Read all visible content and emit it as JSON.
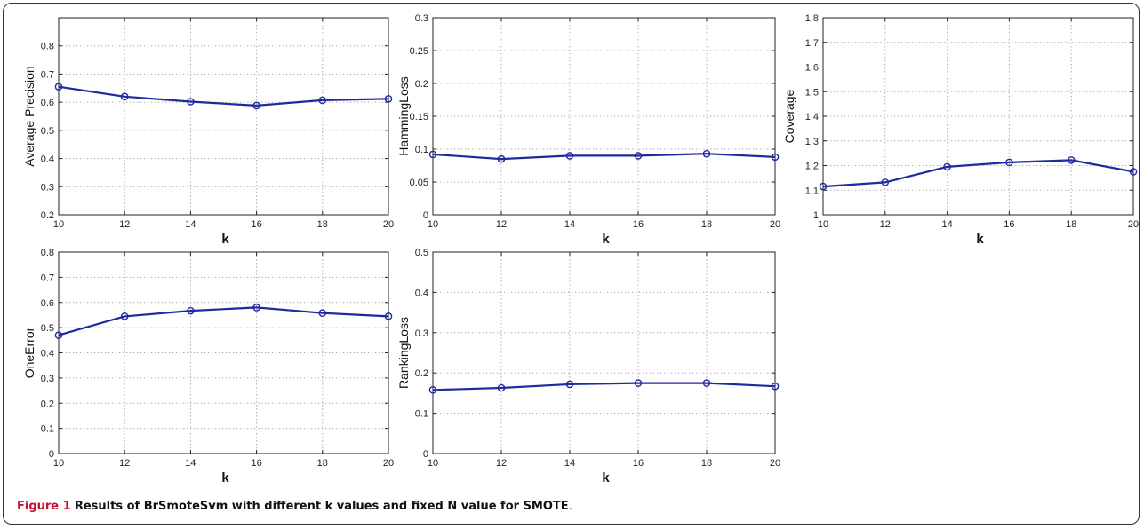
{
  "caption": {
    "label": "Figure 1",
    "text": "Results of BrSmoteSvm with different k values and fixed N value for SMOTE",
    "end": "."
  },
  "style": {
    "line_color": "#1f2a9e",
    "marker_color": "#1f2a9e",
    "grid_color": "#b0b0b0"
  },
  "chart_data": [
    {
      "type": "line",
      "xlabel": "k",
      "ylabel": "Average Precision",
      "x": [
        10,
        12,
        14,
        16,
        18,
        20
      ],
      "xticks": [
        10,
        12,
        14,
        16,
        18,
        20
      ],
      "xlim": [
        10,
        20
      ],
      "ylim": [
        0.2,
        0.9
      ],
      "yticks": [
        "0.2",
        "0.3",
        "0.4",
        "0.5",
        "0.6",
        "0.7",
        "0.8"
      ],
      "series": [
        {
          "values": [
            0.655,
            0.62,
            0.602,
            0.588,
            0.607,
            0.612
          ]
        }
      ],
      "grid": true
    },
    {
      "type": "line",
      "xlabel": "k",
      "ylabel": "HammingLoss",
      "x": [
        10,
        12,
        14,
        16,
        18,
        20
      ],
      "xticks": [
        10,
        12,
        14,
        16,
        18,
        20
      ],
      "xlim": [
        10,
        20
      ],
      "ylim": [
        0,
        0.3
      ],
      "yticks": [
        "0",
        "0.05",
        "0.1",
        "0.15",
        "0.2",
        "0.25",
        "0.3"
      ],
      "series": [
        {
          "values": [
            0.092,
            0.085,
            0.09,
            0.09,
            0.093,
            0.088
          ]
        }
      ],
      "grid": true
    },
    {
      "type": "line",
      "xlabel": "k",
      "ylabel": "Coverage",
      "x": [
        10,
        12,
        14,
        16,
        18,
        20
      ],
      "xticks": [
        10,
        12,
        14,
        16,
        18,
        20
      ],
      "xlim": [
        10,
        20
      ],
      "ylim": [
        1,
        1.8
      ],
      "yticks": [
        "1",
        "1.1",
        "1.2",
        "1.3",
        "1.4",
        "1.5",
        "1.6",
        "1.7",
        "1.8"
      ],
      "series": [
        {
          "values": [
            1.115,
            1.132,
            1.195,
            1.213,
            1.222,
            1.175
          ]
        }
      ],
      "grid": true
    },
    {
      "type": "line",
      "xlabel": "k",
      "ylabel": "OneError",
      "x": [
        10,
        12,
        14,
        16,
        18,
        20
      ],
      "xticks": [
        10,
        12,
        14,
        16,
        18,
        20
      ],
      "xlim": [
        10,
        20
      ],
      "ylim": [
        0,
        0.8
      ],
      "yticks": [
        "0",
        "0.1",
        "0.2",
        "0.3",
        "0.4",
        "0.5",
        "0.6",
        "0.7",
        "0.8"
      ],
      "series": [
        {
          "values": [
            0.47,
            0.545,
            0.567,
            0.58,
            0.558,
            0.545
          ]
        }
      ],
      "grid": true
    },
    {
      "type": "line",
      "xlabel": "k",
      "ylabel": "RankingLoss",
      "x": [
        10,
        12,
        14,
        16,
        18,
        20
      ],
      "xticks": [
        10,
        12,
        14,
        16,
        18,
        20
      ],
      "xlim": [
        10,
        20
      ],
      "ylim": [
        0,
        0.5
      ],
      "yticks": [
        "0",
        "0.1",
        "0.2",
        "0.3",
        "0.4",
        "0.5"
      ],
      "series": [
        {
          "values": [
            0.158,
            0.163,
            0.172,
            0.175,
            0.175,
            0.167
          ]
        }
      ],
      "grid": true
    }
  ]
}
